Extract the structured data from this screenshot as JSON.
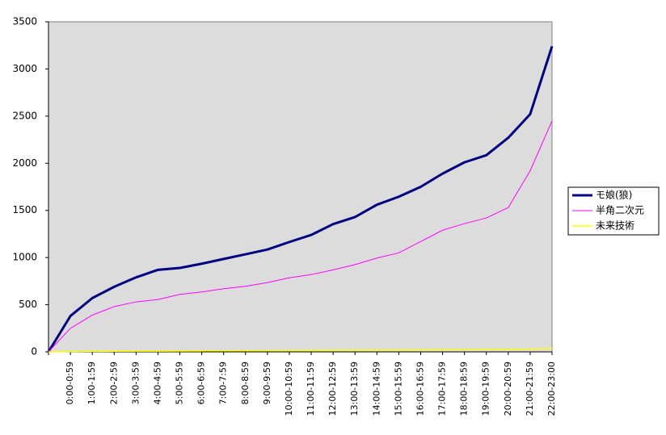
{
  "chart_data": {
    "type": "line",
    "categories": [
      null,
      "0:00-0:59",
      "1:00-1:59",
      "2:00-2:59",
      "3:00-3:59",
      "4:00-4:59",
      "5:00-5:59",
      "6:00-6:59",
      "7:00-7:59",
      "8:00-8:59",
      "9:00-9:59",
      "10:00-10:59",
      "11:00-11:59",
      "12:00-12:59",
      "13:00-13:59",
      "14:00-14:59",
      "15:00-15:59",
      "16:00-16:59",
      "17:00-17:59",
      "18:00-18:59",
      "19:00-19:59",
      "20:00-20:59",
      "21:00-21:59",
      "22:00-23:00"
    ],
    "series": [
      {
        "name": "モ娘(狼)",
        "color": "#000080",
        "width": 3,
        "values": [
          0,
          380,
          570,
          690,
          790,
          870,
          890,
          935,
          985,
          1035,
          1085,
          1165,
          1240,
          1355,
          1430,
          1560,
          1645,
          1750,
          1890,
          2010,
          2085,
          2270,
          2520,
          3240
        ]
      },
      {
        "name": "半角二次元",
        "color": "#ff00ff",
        "width": 1,
        "values": [
          0,
          250,
          390,
          480,
          530,
          555,
          610,
          635,
          670,
          695,
          735,
          785,
          820,
          870,
          925,
          995,
          1050,
          1170,
          1290,
          1360,
          1420,
          1530,
          1920,
          2450
        ]
      },
      {
        "name": "未来技術",
        "color": "#ffff00",
        "width": 1.5,
        "values": [
          0,
          3,
          5,
          6,
          7,
          8,
          9,
          10,
          11,
          12,
          13,
          14,
          15,
          16,
          17,
          18,
          19,
          20,
          21,
          22,
          23,
          24,
          30,
          35
        ]
      }
    ],
    "ylim": [
      0,
      3500
    ],
    "yticks": [
      0,
      500,
      1000,
      1500,
      2000,
      2500,
      3000,
      3500
    ],
    "legend": "right",
    "background": "#dcdcdc"
  }
}
